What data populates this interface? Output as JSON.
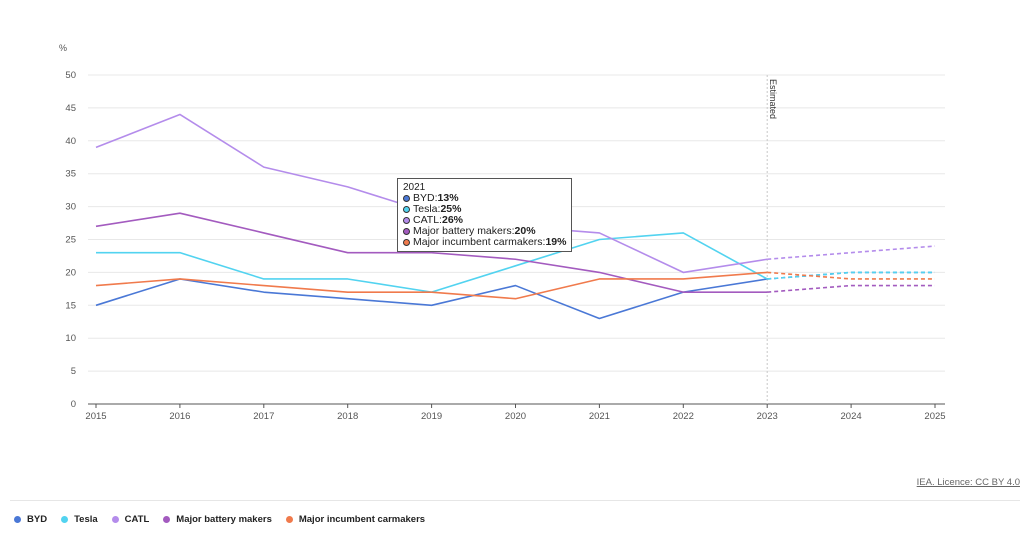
{
  "chart_data": {
    "type": "line",
    "unit_label": "%",
    "y_ticks": [
      0,
      5,
      10,
      15,
      20,
      25,
      30,
      35,
      40,
      45,
      50
    ],
    "ylim": [
      0,
      50
    ],
    "x": [
      "2015",
      "2016",
      "2017",
      "2018",
      "2019",
      "2020",
      "2021",
      "2022",
      "2023",
      "2024",
      "2025"
    ],
    "estimated_from": "2023",
    "annotation": "Estimated",
    "series": [
      {
        "name": "BYD",
        "color": "#4a78d6",
        "values": [
          15,
          19,
          17,
          16,
          15,
          18,
          13,
          17,
          19,
          20,
          20
        ]
      },
      {
        "name": "Tesla",
        "color": "#52d3f0",
        "values": [
          23,
          23,
          19,
          19,
          17,
          21,
          25,
          26,
          19,
          20,
          20
        ]
      },
      {
        "name": "CATL",
        "color": "#b48ceb",
        "values": [
          39,
          44,
          36,
          33,
          29,
          27,
          26,
          20,
          22,
          23,
          24
        ]
      },
      {
        "name": "Major battery makers",
        "color": "#a35bbf",
        "values": [
          27,
          29,
          26,
          23,
          23,
          22,
          20,
          17,
          17,
          18,
          18
        ]
      },
      {
        "name": "Major incumbent carmakers",
        "color": "#f07a4c",
        "values": [
          18,
          19,
          18,
          17,
          17,
          16,
          19,
          19,
          20,
          19,
          19
        ]
      }
    ]
  },
  "tooltip": {
    "title": "2021",
    "rows": [
      {
        "label": "BYD: ",
        "value": "13%",
        "color": "#4a78d6"
      },
      {
        "label": "Tesla: ",
        "value": "25%",
        "color": "#52d3f0"
      },
      {
        "label": "CATL: ",
        "value": "26%",
        "color": "#b48ceb"
      },
      {
        "label": "Major battery makers: ",
        "value": "20%",
        "color": "#a35bbf"
      },
      {
        "label": "Major incumbent carmakers: ",
        "value": "19%",
        "color": "#f07a4c"
      }
    ]
  },
  "credit": "IEA. Licence: CC BY 4.0",
  "legend": [
    {
      "label": "BYD",
      "color": "#4a78d6"
    },
    {
      "label": "Tesla",
      "color": "#52d3f0"
    },
    {
      "label": "CATL",
      "color": "#b48ceb"
    },
    {
      "label": "Major battery makers",
      "color": "#a35bbf"
    },
    {
      "label": "Major incumbent carmakers",
      "color": "#f07a4c"
    }
  ]
}
